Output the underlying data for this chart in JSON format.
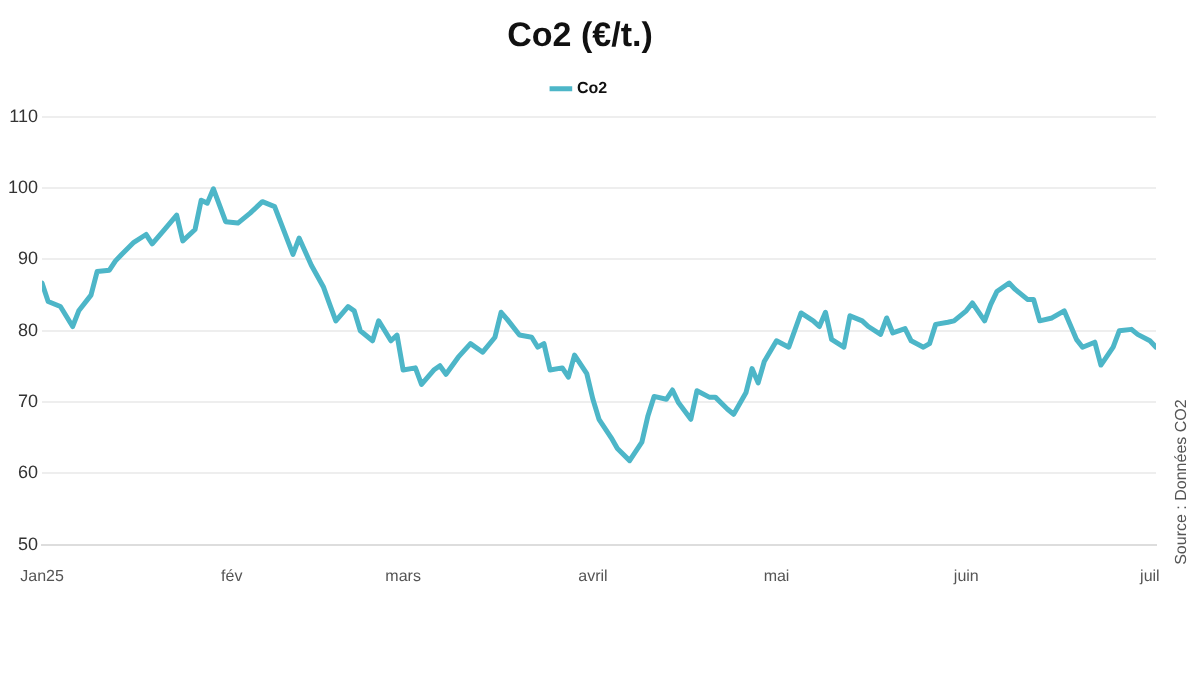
{
  "chart_data": {
    "type": "line",
    "title": "Co2 (€/t.)",
    "legend": "top",
    "x": [
      "2025-01-01",
      "2025-01-02",
      "2025-01-04",
      "2025-01-06",
      "2025-01-07",
      "2025-01-09",
      "2025-01-10",
      "2025-01-12",
      "2025-01-13",
      "2025-01-14",
      "2025-01-16",
      "2025-01-18",
      "2025-01-19",
      "2025-01-21",
      "2025-01-23",
      "2025-01-24",
      "2025-01-26",
      "2025-01-27",
      "2025-01-28",
      "2025-01-29",
      "2025-01-31",
      "2025-02-02",
      "2025-02-04",
      "2025-02-06",
      "2025-02-08",
      "2025-02-11",
      "2025-02-12",
      "2025-02-14",
      "2025-02-16",
      "2025-02-17",
      "2025-02-18",
      "2025-02-20",
      "2025-02-21",
      "2025-02-22",
      "2025-02-24",
      "2025-02-25",
      "2025-02-27",
      "2025-02-28",
      "2025-03-01",
      "2025-03-03",
      "2025-03-04",
      "2025-03-06",
      "2025-03-07",
      "2025-03-08",
      "2025-03-10",
      "2025-03-12",
      "2025-03-14",
      "2025-03-16",
      "2025-03-17",
      "2025-03-18",
      "2025-03-20",
      "2025-03-22",
      "2025-03-23",
      "2025-03-24",
      "2025-03-25",
      "2025-03-27",
      "2025-03-28",
      "2025-03-29",
      "2025-03-31",
      "2025-04-01",
      "2025-04-02",
      "2025-04-04",
      "2025-04-05",
      "2025-04-07",
      "2025-04-09",
      "2025-04-10",
      "2025-04-11",
      "2025-04-13",
      "2025-04-14",
      "2025-04-15",
      "2025-04-17",
      "2025-04-18",
      "2025-04-20",
      "2025-04-21",
      "2025-04-23",
      "2025-04-24",
      "2025-04-26",
      "2025-04-27",
      "2025-04-28",
      "2025-04-29",
      "2025-05-01",
      "2025-05-03",
      "2025-05-05",
      "2025-05-07",
      "2025-05-08",
      "2025-05-09",
      "2025-05-10",
      "2025-05-12",
      "2025-05-13",
      "2025-05-15",
      "2025-05-16",
      "2025-05-18",
      "2025-05-19",
      "2025-05-20",
      "2025-05-22",
      "2025-05-23",
      "2025-05-25",
      "2025-05-26",
      "2025-05-27",
      "2025-05-29",
      "2025-05-30",
      "2025-06-01",
      "2025-06-02",
      "2025-06-04",
      "2025-06-05",
      "2025-06-06",
      "2025-06-08",
      "2025-06-09",
      "2025-06-11",
      "2025-06-12",
      "2025-06-13",
      "2025-06-15",
      "2025-06-17",
      "2025-06-19",
      "2025-06-20",
      "2025-06-22",
      "2025-06-23",
      "2025-06-25",
      "2025-06-26",
      "2025-06-28",
      "2025-06-29",
      "2025-07-01",
      "2025-07-02"
    ],
    "series": [
      {
        "name": "Co2",
        "color": "#4db6c8",
        "values": [
          86.7,
          84.1,
          83.4,
          80.6,
          82.8,
          85.0,
          88.3,
          88.5,
          89.8,
          90.7,
          92.4,
          93.5,
          92.2,
          94.2,
          96.2,
          92.6,
          94.2,
          98.3,
          97.9,
          99.9,
          95.3,
          95.1,
          96.5,
          98.1,
          97.4,
          90.7,
          93.0,
          89.2,
          86.1,
          83.7,
          81.4,
          83.4,
          82.8,
          80.0,
          78.6,
          81.4,
          78.6,
          79.4,
          74.5,
          74.8,
          72.5,
          74.5,
          75.1,
          73.9,
          76.3,
          78.2,
          77.0,
          79.1,
          82.6,
          81.6,
          79.4,
          79.1,
          77.7,
          78.2,
          74.5,
          74.8,
          73.5,
          76.6,
          74.0,
          70.4,
          67.6,
          65.0,
          63.5,
          61.8,
          64.4,
          68.1,
          70.8,
          70.4,
          71.7,
          69.9,
          67.6,
          71.6,
          70.7,
          70.7,
          69.0,
          68.3,
          71.3,
          74.7,
          72.7,
          75.7,
          78.6,
          77.7,
          82.5,
          81.4,
          80.6,
          82.6,
          78.8,
          77.7,
          82.1,
          81.4,
          80.6,
          79.5,
          81.8,
          79.7,
          80.3,
          78.6,
          77.7,
          78.2,
          80.9,
          81.2,
          81.4,
          82.8,
          83.9,
          81.4,
          83.7,
          85.5,
          86.7,
          85.8,
          84.4,
          84.4,
          81.4,
          81.8,
          82.8,
          78.8,
          77.7,
          78.4,
          75.2,
          77.7,
          80.0,
          80.2,
          79.5,
          78.6,
          77.7
        ]
      }
    ],
    "xlim": [
      "2025-01-01",
      "2025-07-02"
    ],
    "xticks": [
      {
        "value": "2025-01-01",
        "label": "Jan25"
      },
      {
        "value": "2025-02-01",
        "label": "fév"
      },
      {
        "value": "2025-03-01",
        "label": "mars"
      },
      {
        "value": "2025-04-01",
        "label": "avril"
      },
      {
        "value": "2025-05-01",
        "label": "mai"
      },
      {
        "value": "2025-06-01",
        "label": "juin"
      },
      {
        "value": "2025-07-01",
        "label": "juil"
      }
    ],
    "ylim": [
      50,
      110
    ],
    "yticks": [
      50,
      60,
      70,
      80,
      90,
      100,
      110
    ],
    "grid": "y",
    "marker": "none",
    "line_style": "solid",
    "annotations": [
      "Source : Données CO2"
    ]
  }
}
